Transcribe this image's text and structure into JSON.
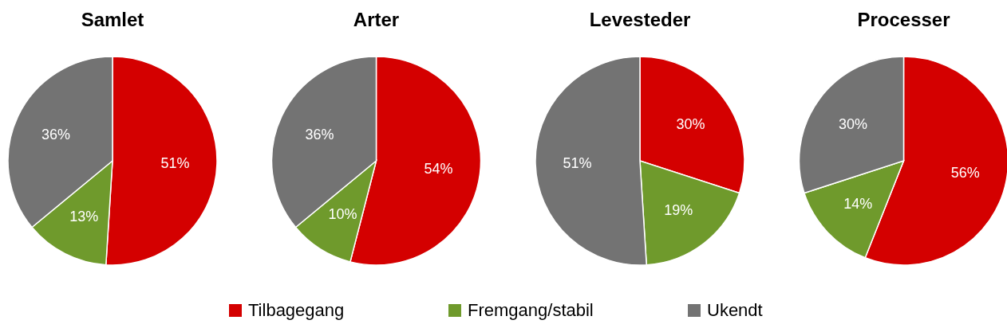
{
  "chart_data": [
    {
      "type": "pie",
      "title": "Samlet",
      "categories": [
        "Tilbagegang",
        "Fremgang/stabil",
        "Ukendt"
      ],
      "values": [
        51,
        13,
        36
      ],
      "value_labels": [
        "51%",
        "13%",
        "36%"
      ],
      "colors": [
        "#d40000",
        "#6f9a2c",
        "#737373"
      ],
      "legend": "bottom"
    },
    {
      "type": "pie",
      "title": "Arter",
      "categories": [
        null,
        null,
        null
      ],
      "values": [
        54,
        10,
        36
      ],
      "value_labels": [
        "54%",
        "10%",
        "36%"
      ],
      "colors": [
        "#d40000",
        "#6f9a2c",
        "#737373"
      ]
    },
    {
      "type": "pie",
      "title": "Levesteder",
      "categories": [
        null,
        null,
        null
      ],
      "values": [
        30,
        19,
        51
      ],
      "value_labels": [
        "30%",
        "19%",
        "51%"
      ],
      "colors": [
        "#d40000",
        "#6f9a2c",
        "#737373"
      ]
    },
    {
      "type": "pie",
      "title": "Processer",
      "categories": [
        null,
        null,
        null
      ],
      "values": [
        56,
        14,
        30
      ],
      "value_labels": [
        "56%",
        "14%",
        "30%"
      ],
      "colors": [
        "#d40000",
        "#6f9a2c",
        "#737373"
      ]
    }
  ]
}
